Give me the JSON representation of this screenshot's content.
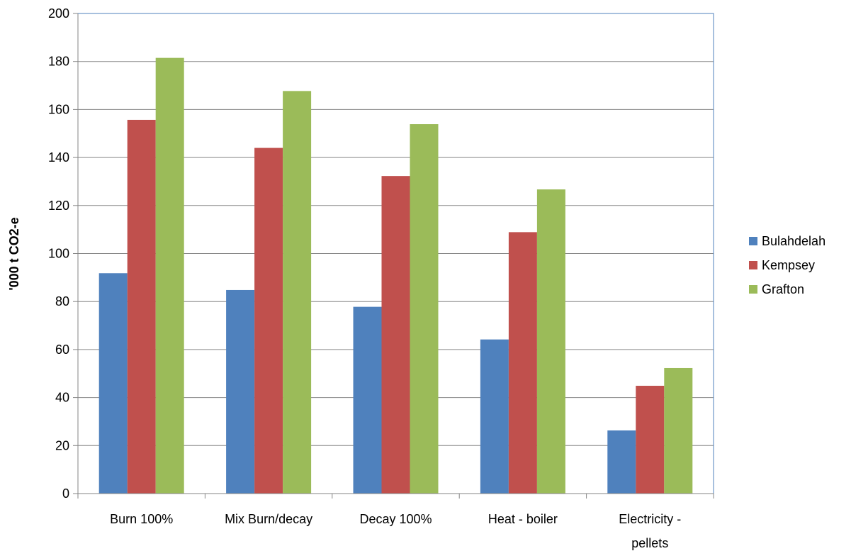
{
  "chart_data": {
    "type": "bar",
    "title": "",
    "xlabel": "",
    "ylabel": "'000 t CO2-e",
    "ylim": [
      0,
      200
    ],
    "ytick_step": 20,
    "grid": true,
    "legend_position": "right",
    "categories": [
      "Burn 100%",
      "Mix Burn/decay",
      "Decay 100%",
      "Heat - boiler",
      "Electricity - pellets"
    ],
    "category_label_lines": [
      [
        "Burn 100%"
      ],
      [
        "Mix Burn/decay"
      ],
      [
        "Decay 100%"
      ],
      [
        "Heat - boiler"
      ],
      [
        "Electricity -",
        "pellets"
      ]
    ],
    "series": [
      {
        "name": "Bulahdelah",
        "color": "#4F81BD",
        "values": [
          91.8,
          84.8,
          77.8,
          64.2,
          26.3
        ]
      },
      {
        "name": "Kempsey",
        "color": "#C0504D",
        "values": [
          155.7,
          144.0,
          132.3,
          108.9,
          44.9
        ]
      },
      {
        "name": "Grafton",
        "color": "#9BBB59",
        "values": [
          181.5,
          167.7,
          153.9,
          126.7,
          52.3
        ]
      }
    ]
  }
}
